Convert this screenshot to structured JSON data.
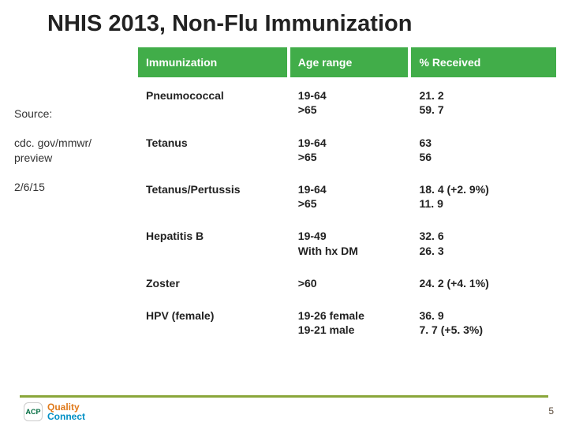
{
  "title": "NHIS 2013, Non-Flu Immunization",
  "side": {
    "source_label": "Source:",
    "source_url": "cdc. gov/mmwr/ preview",
    "date": "2/6/15"
  },
  "table": {
    "columns": [
      "Immunization",
      "Age range",
      "% Received"
    ],
    "rows": [
      {
        "immunization": "Pneumococcal",
        "age": "19-64\n>65",
        "pct": "21. 2\n59. 7"
      },
      {
        "immunization": "Tetanus",
        "age": "19-64\n>65",
        "pct": "63\n56"
      },
      {
        "immunization": "Tetanus/Pertussis",
        "age": "19-64\n>65",
        "pct": "18. 4 (+2. 9%)\n11. 9"
      },
      {
        "immunization": "Hepatitis B",
        "age": "19-49\nWith hx DM",
        "pct": "32. 6\n26. 3"
      },
      {
        "immunization": "Zoster",
        "age": ">60",
        "pct": "24. 2 (+4. 1%)"
      },
      {
        "immunization": "HPV (female)",
        "age": "19-26 female\n19-21 male",
        "pct": "36. 9\n 7. 7  (+5. 3%)"
      }
    ]
  },
  "footer": {
    "page_number": "5",
    "logo_badge": "ACP",
    "logo_word1": "Quality",
    "logo_word2": "Connect"
  },
  "colors": {
    "header_bg": "#41ad49",
    "accent_bar": "#c9d94a",
    "bottom_rule": "#8aa63a"
  }
}
